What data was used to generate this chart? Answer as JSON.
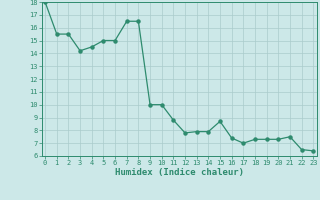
{
  "x": [
    0,
    1,
    2,
    3,
    4,
    5,
    6,
    7,
    8,
    9,
    10,
    11,
    12,
    13,
    14,
    15,
    16,
    17,
    18,
    19,
    20,
    21,
    22,
    23
  ],
  "y": [
    18,
    15.5,
    15.5,
    14.2,
    14.5,
    15.0,
    15.0,
    16.5,
    16.5,
    10.0,
    10.0,
    8.8,
    7.8,
    7.9,
    7.9,
    8.7,
    7.4,
    7.0,
    7.3,
    7.3,
    7.3,
    7.5,
    6.5,
    6.4
  ],
  "xlabel": "Humidex (Indice chaleur)",
  "ylim": [
    6,
    18
  ],
  "xlim": [
    -0.3,
    23.3
  ],
  "yticks": [
    6,
    7,
    8,
    9,
    10,
    11,
    12,
    13,
    14,
    15,
    16,
    17,
    18
  ],
  "xticks": [
    0,
    1,
    2,
    3,
    4,
    5,
    6,
    7,
    8,
    9,
    10,
    11,
    12,
    13,
    14,
    15,
    16,
    17,
    18,
    19,
    20,
    21,
    22,
    23
  ],
  "line_color": "#2e8b6e",
  "marker_color": "#2e8b6e",
  "bg_color": "#cce8e8",
  "grid_color": "#aacccc",
  "label_color": "#2e8b6e",
  "tick_color": "#2e8b6e",
  "font_family": "monospace",
  "tick_fontsize": 5.0,
  "xlabel_fontsize": 6.5
}
